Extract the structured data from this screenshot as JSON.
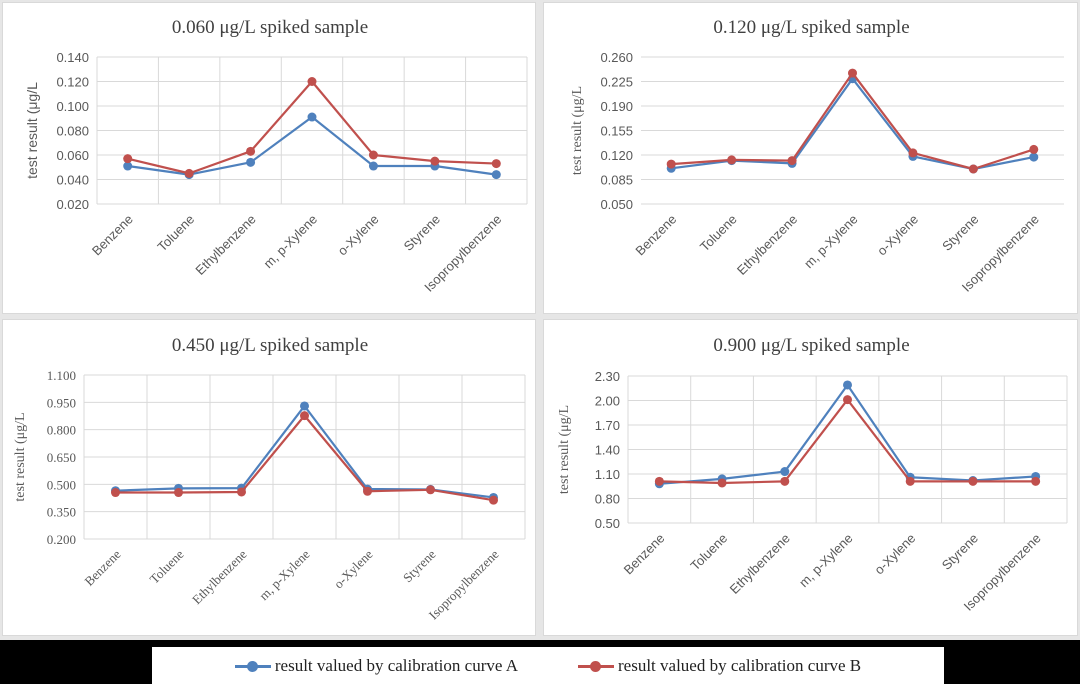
{
  "colors": {
    "series_a": "#4f81bd",
    "series_b": "#c0504d",
    "gridline": "#d9d9d9",
    "text": "#595959"
  },
  "legend": {
    "items": [
      {
        "label": "result valued by calibration curve A",
        "series": "A"
      },
      {
        "label": "result valued by calibration curve B",
        "series": "B"
      }
    ]
  },
  "chart_data": [
    {
      "type": "line",
      "title": "0.060 μg/L spiked sample",
      "ylabel": "test result (μg/L",
      "xlabel": "",
      "categories": [
        "Benzene",
        "Toluene",
        "Ethylbenzene",
        "m, p-Xylene",
        "o-Xylene",
        "Styrene",
        "Isopropylbenzene"
      ],
      "ylim": [
        0.02,
        0.14
      ],
      "yticks": [
        "0.020",
        "0.040",
        "0.060",
        "0.080",
        "0.100",
        "0.120",
        "0.140"
      ],
      "grid": "both",
      "series": [
        {
          "name": "result valued by calibration curve A",
          "values": [
            0.051,
            0.044,
            0.054,
            0.091,
            0.051,
            0.051,
            0.044
          ]
        },
        {
          "name": "result valued by calibration curve B",
          "values": [
            0.057,
            0.045,
            0.063,
            0.12,
            0.06,
            0.055,
            0.053
          ]
        }
      ]
    },
    {
      "type": "line",
      "title": "0.120 μg/L spiked sample",
      "ylabel": "test result (μg/L",
      "xlabel": "",
      "categories": [
        "Benzene",
        "Toluene",
        "Ethylbenzene",
        "m, p-Xylene",
        "o-Xylene",
        "Styrene",
        "Isopropylbenzene"
      ],
      "ylim": [
        0.05,
        0.26
      ],
      "yticks": [
        "0.050",
        "0.085",
        "0.120",
        "0.155",
        "0.190",
        "0.225",
        "0.260"
      ],
      "grid": "horizontal",
      "series": [
        {
          "name": "result valued by calibration curve A",
          "values": [
            0.101,
            0.112,
            0.108,
            0.229,
            0.118,
            0.1,
            0.117
          ]
        },
        {
          "name": "result valued by calibration curve B",
          "values": [
            0.107,
            0.113,
            0.112,
            0.237,
            0.123,
            0.1,
            0.128
          ]
        }
      ]
    },
    {
      "type": "line",
      "title": "0.450 μg/L spiked sample",
      "ylabel": "test result (μg/L",
      "xlabel": "",
      "categories": [
        "Benzene",
        "Toluene",
        "Ethylbenzene",
        "m, p-Xylene",
        "o-Xylene",
        "Styrene",
        "Isopropylbenzene"
      ],
      "ylim": [
        0.2,
        1.1
      ],
      "yticks": [
        "0.200",
        "0.350",
        "0.500",
        "0.650",
        "0.800",
        "0.950",
        "1.100"
      ],
      "grid": "both",
      "series": [
        {
          "name": "result valued by calibration curve A",
          "values": [
            0.465,
            0.478,
            0.479,
            0.93,
            0.474,
            0.472,
            0.428
          ]
        },
        {
          "name": "result valued by calibration curve B",
          "values": [
            0.455,
            0.455,
            0.458,
            0.877,
            0.462,
            0.47,
            0.413
          ]
        }
      ]
    },
    {
      "type": "line",
      "title": "0.900 μg/L spiked sample",
      "ylabel": "test result (μg/L",
      "xlabel": "",
      "categories": [
        "Benzene",
        "Toluene",
        "Ethylbenzene",
        "m, p-Xylene",
        "o-Xylene",
        "Styrene",
        "Isopropylbenzene"
      ],
      "ylim": [
        0.5,
        2.3
      ],
      "yticks": [
        "0.50",
        "0.80",
        "1.10",
        "1.40",
        "1.70",
        "2.00",
        "2.30"
      ],
      "grid": "both",
      "series": [
        {
          "name": "result valued by calibration curve A",
          "values": [
            0.98,
            1.04,
            1.13,
            2.19,
            1.06,
            1.02,
            1.07
          ]
        },
        {
          "name": "result valued by calibration curve B",
          "values": [
            1.01,
            0.99,
            1.01,
            2.01,
            1.01,
            1.01,
            1.01
          ]
        }
      ]
    }
  ]
}
